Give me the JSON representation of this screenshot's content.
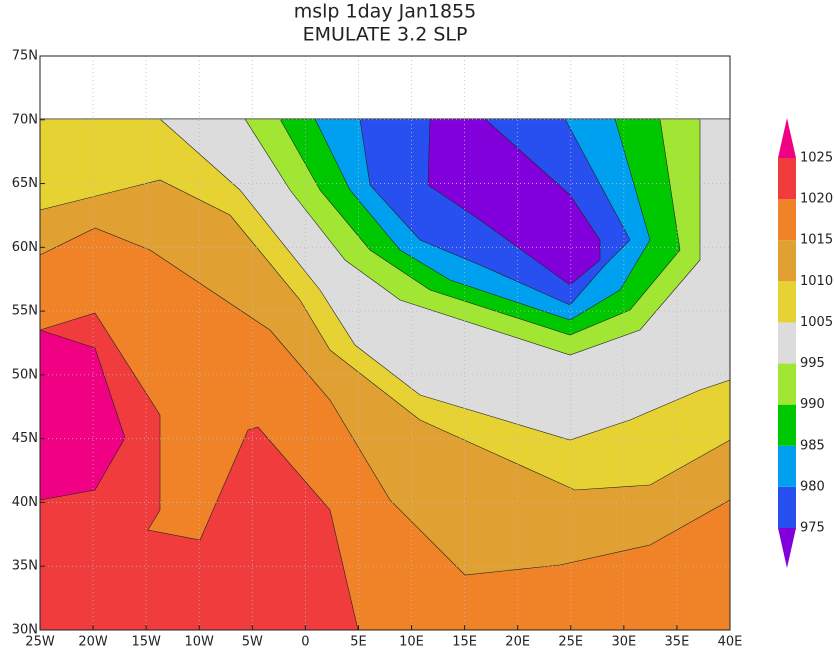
{
  "chart_data": {
    "type": "contour",
    "title": "mslp 1day Jan1855",
    "subtitle": "EMULATE 3.2 SLP",
    "xlim": [
      -25,
      40
    ],
    "ylim": [
      30,
      75
    ],
    "xticks": [
      {
        "value": -25,
        "label": "25W"
      },
      {
        "value": -20,
        "label": "20W"
      },
      {
        "value": -15,
        "label": "15W"
      },
      {
        "value": -10,
        "label": "10W"
      },
      {
        "value": -5,
        "label": "5W"
      },
      0,
      {
        "value": 5,
        "label": "5E"
      },
      {
        "value": 10,
        "label": "10E"
      },
      {
        "value": 15,
        "label": "15E"
      },
      {
        "value": 20,
        "label": "20E"
      },
      {
        "value": 25,
        "label": "25E"
      },
      {
        "value": 30,
        "label": "30E"
      },
      {
        "value": 35,
        "label": "35E"
      },
      {
        "value": 40,
        "label": "40E"
      }
    ],
    "yticks": [
      {
        "value": 30,
        "label": "30N"
      },
      {
        "value": 35,
        "label": "35N"
      },
      {
        "value": 40,
        "label": "40N"
      },
      {
        "value": 45,
        "label": "45N"
      },
      {
        "value": 50,
        "label": "50N"
      },
      {
        "value": 55,
        "label": "55N"
      },
      {
        "value": 60,
        "label": "60N"
      },
      {
        "value": 65,
        "label": "65N"
      },
      {
        "value": 70,
        "label": "70N"
      },
      {
        "value": 75,
        "label": "75N"
      }
    ],
    "grid": true,
    "levels": [
      975,
      980,
      985,
      990,
      995,
      1005,
      1010,
      1015,
      1020,
      1025
    ],
    "colors": [
      "#8200dc",
      "#2850f0",
      "#00a0f0",
      "#00c800",
      "#a0e632",
      "#dcdcdc",
      "#e6d232",
      "#e1a032",
      "#f08228",
      "#f03c3c",
      "#f00082"
    ]
  }
}
